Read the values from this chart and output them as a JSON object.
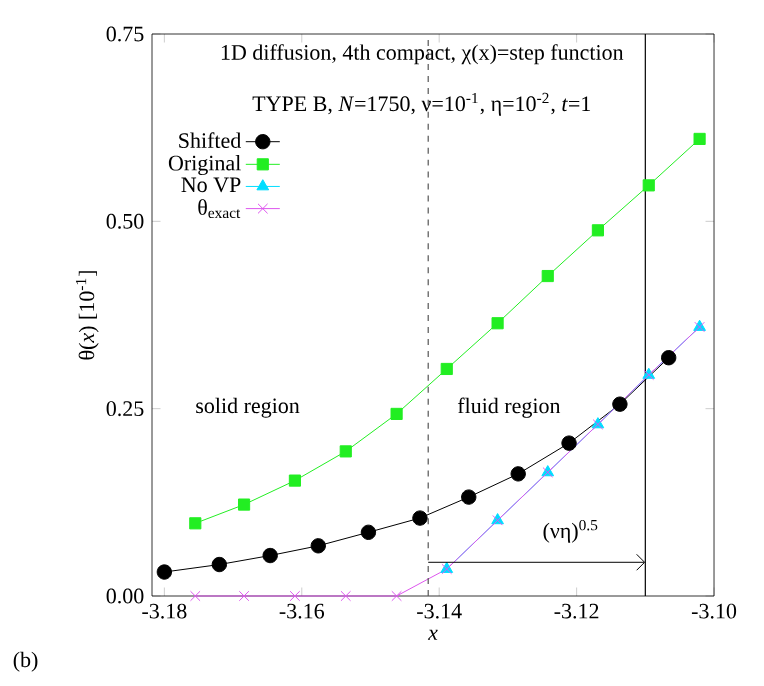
{
  "chart_data": {
    "type": "line",
    "title": "1D diffusion, 4th compact, χ(x)=step function",
    "subtitle": "TYPE B, *N*=1750, ν=10$^{-1}$, η=10$^{-2}$, *t*=1",
    "xlabel": "*x*",
    "ylabel": "θ(*x*) [10$^{-1}$]",
    "xlim": [
      -3.1818,
      -3.1
    ],
    "ylim": [
      0,
      0.75
    ],
    "xticks": [
      -3.18,
      -3.16,
      -3.14,
      -3.12,
      {
        "value": -3.1,
        "label": "-3.10"
      }
    ],
    "yticks": [
      {
        "value": 0,
        "label": "0.00"
      },
      0.25,
      {
        "value": 0.5,
        "label": "0.50"
      },
      0.75
    ],
    "legend": "top left",
    "grid": false,
    "line_style": "solid",
    "series": [
      {
        "name": "Shifted",
        "color": "#000000",
        "marker": "circle",
        "x": [
          -3.18,
          -3.172,
          -3.1646,
          -3.1576,
          -3.1503,
          -3.1428,
          -3.1357,
          -3.1285,
          -3.1211,
          -3.1137,
          -3.1066
        ],
        "values": [
          0.032,
          0.042,
          0.054,
          0.067,
          0.085,
          0.104,
          0.132,
          0.163,
          0.204,
          0.256,
          0.318
        ]
      },
      {
        "name": "Original",
        "color": "#22ee22",
        "marker": "square",
        "x": [
          -3.1755,
          -3.1684,
          -3.161,
          -3.1536,
          -3.1462,
          -3.1389,
          -3.1315,
          -3.1242,
          -3.1169,
          -3.1095,
          -3.1021
        ],
        "values": [
          0.097,
          0.122,
          0.154,
          0.193,
          0.243,
          0.303,
          0.364,
          0.427,
          0.488,
          0.548,
          0.61
        ]
      },
      {
        "name": "No VP",
        "color": "#00ddff",
        "marker": "triangle",
        "x": [
          -3.1389,
          -3.1315,
          -3.1242,
          -3.1169,
          -3.1095,
          -3.1021
        ],
        "values": [
          0.036,
          0.101,
          0.165,
          0.229,
          0.295,
          0.359
        ]
      },
      {
        "name": "θ$_{exact}$",
        "color": "#dd55ee",
        "marker": "cross",
        "x": [
          -3.1755,
          -3.1684,
          -3.161,
          -3.1536,
          -3.1462,
          -3.1389,
          -3.1315,
          -3.1242,
          -3.1169,
          -3.1095,
          -3.1021
        ],
        "values": [
          0,
          0,
          0,
          0,
          0,
          0.036,
          0.101,
          0.165,
          0.229,
          0.295,
          0.359
        ]
      }
    ],
    "ref_lines": [
      {
        "axis": "x",
        "value": -3.1416,
        "line_style": "dashed",
        "color": "#555555"
      },
      {
        "axis": "x",
        "value": -3.11,
        "line_style": "solid",
        "color": "#000000"
      }
    ],
    "annotations": [
      "solid region",
      "fluid region",
      "(νη)$^{0.5}$",
      "(b)"
    ]
  }
}
